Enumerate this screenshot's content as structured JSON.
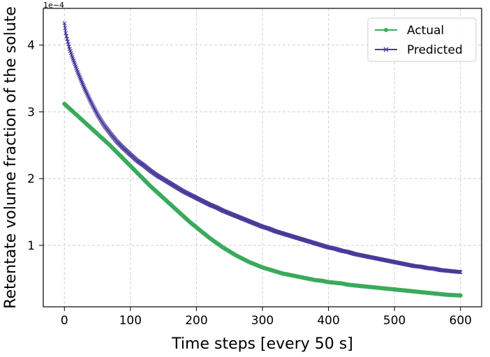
{
  "chart_data": {
    "type": "line",
    "xlabel": "Time steps [every 50 s]",
    "ylabel": "Retentate volume fraction of the solute",
    "y_offset_label": "1e−4",
    "y_scale": 0.0001,
    "xlim": [
      -32,
      632
    ],
    "ylim": [
      0.08,
      4.55
    ],
    "x_ticks": [
      0,
      100,
      200,
      300,
      400,
      500,
      600
    ],
    "x_tick_labels": [
      "0",
      "100",
      "200",
      "300",
      "400",
      "500",
      "600"
    ],
    "y_ticks": [
      1,
      2,
      3,
      4
    ],
    "y_tick_labels": [
      "1",
      "2",
      "3",
      "4"
    ],
    "grid": true,
    "legend_position": "top-right",
    "series": [
      {
        "name": "Actual",
        "color": "#3aaa5c",
        "marker": "circle",
        "x": [
          0,
          10,
          20,
          30,
          40,
          50,
          60,
          70,
          80,
          90,
          100,
          110,
          120,
          130,
          140,
          150,
          160,
          170,
          180,
          190,
          200,
          210,
          220,
          230,
          240,
          250,
          260,
          270,
          280,
          290,
          300,
          310,
          320,
          330,
          340,
          350,
          360,
          370,
          380,
          390,
          400,
          410,
          420,
          430,
          440,
          450,
          460,
          470,
          480,
          490,
          500,
          510,
          520,
          530,
          540,
          550,
          560,
          570,
          580,
          590,
          600
        ],
        "values": [
          3.12,
          3.03,
          2.94,
          2.85,
          2.76,
          2.67,
          2.58,
          2.49,
          2.39,
          2.29,
          2.19,
          2.09,
          1.99,
          1.89,
          1.8,
          1.71,
          1.62,
          1.53,
          1.44,
          1.35,
          1.27,
          1.19,
          1.11,
          1.04,
          0.97,
          0.91,
          0.85,
          0.8,
          0.75,
          0.71,
          0.67,
          0.64,
          0.61,
          0.58,
          0.56,
          0.54,
          0.52,
          0.5,
          0.48,
          0.47,
          0.45,
          0.44,
          0.43,
          0.41,
          0.4,
          0.39,
          0.38,
          0.37,
          0.36,
          0.35,
          0.34,
          0.33,
          0.32,
          0.31,
          0.3,
          0.29,
          0.28,
          0.27,
          0.26,
          0.255,
          0.25
        ]
      },
      {
        "name": "Predicted",
        "color": "#4b3a9c",
        "marker": "x",
        "x": [
          0,
          2,
          5,
          8,
          12,
          16,
          20,
          25,
          30,
          40,
          50,
          60,
          70,
          80,
          90,
          100,
          110,
          120,
          130,
          140,
          150,
          160,
          170,
          180,
          190,
          200,
          210,
          220,
          230,
          240,
          250,
          260,
          270,
          280,
          290,
          300,
          310,
          320,
          330,
          340,
          350,
          360,
          370,
          380,
          390,
          400,
          410,
          420,
          430,
          440,
          450,
          460,
          470,
          480,
          490,
          500,
          510,
          520,
          530,
          540,
          550,
          560,
          570,
          580,
          590,
          600
        ],
        "values": [
          4.33,
          4.18,
          4.05,
          3.94,
          3.82,
          3.71,
          3.6,
          3.48,
          3.36,
          3.15,
          2.96,
          2.8,
          2.67,
          2.55,
          2.45,
          2.36,
          2.27,
          2.2,
          2.12,
          2.05,
          1.99,
          1.93,
          1.87,
          1.81,
          1.76,
          1.71,
          1.66,
          1.61,
          1.57,
          1.52,
          1.48,
          1.44,
          1.4,
          1.36,
          1.32,
          1.28,
          1.25,
          1.21,
          1.18,
          1.15,
          1.12,
          1.09,
          1.06,
          1.03,
          1.0,
          0.97,
          0.95,
          0.92,
          0.9,
          0.87,
          0.85,
          0.83,
          0.81,
          0.79,
          0.77,
          0.75,
          0.73,
          0.71,
          0.69,
          0.68,
          0.66,
          0.65,
          0.63,
          0.62,
          0.61,
          0.6
        ]
      }
    ]
  }
}
